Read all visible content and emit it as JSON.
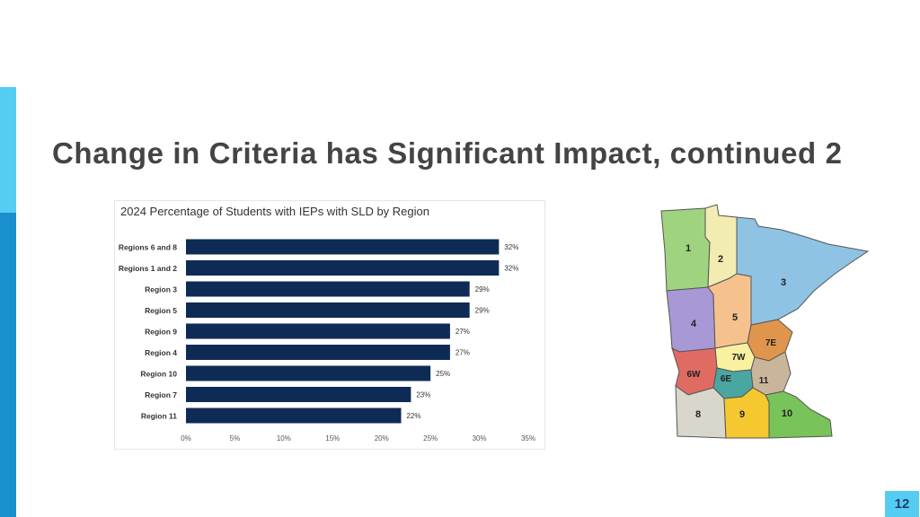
{
  "slide": {
    "title": "Change in Criteria has Significant Impact, continued 2",
    "page_number": "12"
  },
  "chart_data": {
    "type": "bar",
    "orientation": "horizontal",
    "title": "2024 Percentage of Students with IEPs with SLD by Region",
    "categories": [
      "Regions 6 and 8",
      "Regions 1 and 2",
      "Region 3",
      "Region 5",
      "Region 9",
      "Region 4",
      "Region 10",
      "Region 7",
      "Region 11"
    ],
    "values": [
      32,
      32,
      29,
      29,
      27,
      27,
      25,
      23,
      22
    ],
    "value_labels": [
      "32%",
      "32%",
      "29%",
      "29%",
      "27%",
      "27%",
      "25%",
      "23%",
      "22%"
    ],
    "xlim": [
      0,
      35
    ],
    "xticks": [
      "0%",
      "5%",
      "10%",
      "15%",
      "20%",
      "25%",
      "30%",
      "35%"
    ],
    "bar_color": "#0e2b56",
    "grid": false,
    "legend": false
  },
  "map": {
    "region_labels": [
      "1",
      "2",
      "3",
      "4",
      "5",
      "7E",
      "7W",
      "6W",
      "6E",
      "11",
      "8",
      "9",
      "10"
    ],
    "colors": {
      "1": "#9fd37f",
      "2": "#f2ecb2",
      "3": "#8ec3e3",
      "4": "#a898d6",
      "5": "#f5c28e",
      "7E": "#e0954c",
      "7W": "#f9f0a0",
      "6W": "#e06b63",
      "6E": "#4aa6a0",
      "11": "#c9b59a",
      "8": "#d9d6cc",
      "9": "#f6c830",
      "10": "#78c35a"
    }
  },
  "colors": {
    "accent_light": "#55ccf2",
    "accent_dark": "#1a8fce",
    "title_text": "#444444"
  }
}
